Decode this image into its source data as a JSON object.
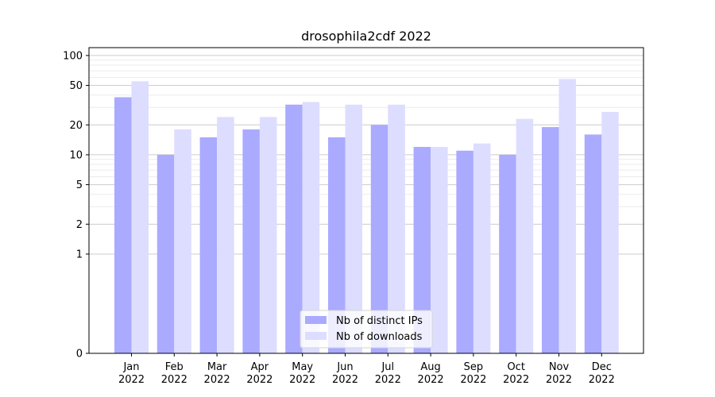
{
  "chart_data": {
    "type": "bar",
    "title": "drosophila2cdf 2022",
    "xlabel": "",
    "ylabel": "",
    "y_scale": "symlog",
    "ylim": [
      0,
      120
    ],
    "y_ticks": [
      0,
      1,
      2,
      5,
      10,
      20,
      50,
      100
    ],
    "y_tick_labels": [
      "0",
      "1",
      "2",
      "5",
      "10",
      "20",
      "50",
      "100"
    ],
    "grid": true,
    "legend_position": "bottom-center",
    "categories": [
      {
        "month": "Jan",
        "year": "2022"
      },
      {
        "month": "Feb",
        "year": "2022"
      },
      {
        "month": "Mar",
        "year": "2022"
      },
      {
        "month": "Apr",
        "year": "2022"
      },
      {
        "month": "May",
        "year": "2022"
      },
      {
        "month": "Jun",
        "year": "2022"
      },
      {
        "month": "Jul",
        "year": "2022"
      },
      {
        "month": "Aug",
        "year": "2022"
      },
      {
        "month": "Sep",
        "year": "2022"
      },
      {
        "month": "Oct",
        "year": "2022"
      },
      {
        "month": "Nov",
        "year": "2022"
      },
      {
        "month": "Dec",
        "year": "2022"
      }
    ],
    "series": [
      {
        "name": "Nb of distinct IPs",
        "color": "#aaaaff",
        "values": [
          38,
          10,
          15,
          18,
          32,
          15,
          20,
          12,
          11,
          10,
          19,
          16
        ]
      },
      {
        "name": "Nb of downloads",
        "color": "#ddddff",
        "values": [
          55,
          18,
          24,
          24,
          34,
          32,
          32,
          12,
          13,
          23,
          58,
          27
        ]
      }
    ]
  }
}
